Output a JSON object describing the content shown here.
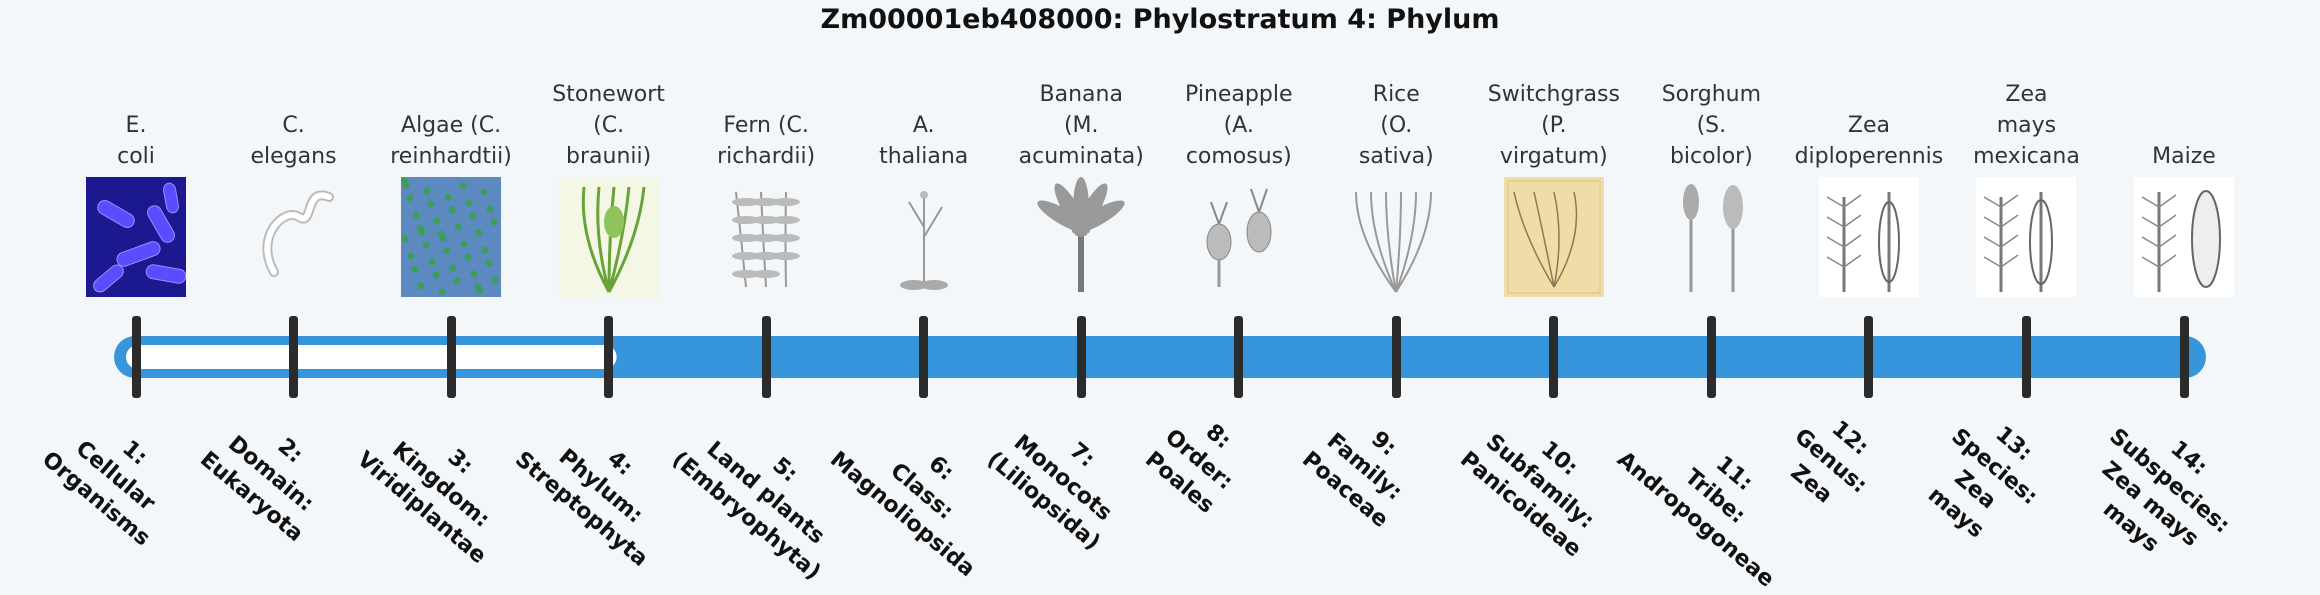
{
  "title": "Zm00001eb408000: Phylostratum 4: Phylum",
  "colors": {
    "track": "#3795dc",
    "track_unfilled": "#ffffff",
    "tick": "#2b2b2b"
  },
  "current_level_index": 3,
  "organisms": [
    {
      "lines": [
        "E.",
        "coli"
      ],
      "icon": "e-coli-image"
    },
    {
      "lines": [
        "C.",
        "elegans"
      ],
      "icon": "worm-image"
    },
    {
      "lines": [
        "Algae (C.",
        "reinhardtii)"
      ],
      "icon": "algae-image"
    },
    {
      "lines": [
        "Stonewort",
        "(C.",
        "braunii)"
      ],
      "icon": "stonewort-image"
    },
    {
      "lines": [
        "Fern (C.",
        "richardii)"
      ],
      "icon": "fern-image"
    },
    {
      "lines": [
        "A.",
        "thaliana"
      ],
      "icon": "arabidopsis-image"
    },
    {
      "lines": [
        "Banana",
        "(M.",
        "acuminata)"
      ],
      "icon": "banana-image"
    },
    {
      "lines": [
        "Pineapple",
        "(A.",
        "comosus)"
      ],
      "icon": "pineapple-image"
    },
    {
      "lines": [
        "Rice",
        "(O.",
        "sativa)"
      ],
      "icon": "rice-image"
    },
    {
      "lines": [
        "Switchgrass",
        "(P.",
        "virgatum)"
      ],
      "icon": "switchgrass-image"
    },
    {
      "lines": [
        "Sorghum",
        "(S.",
        "bicolor)"
      ],
      "icon": "sorghum-image"
    },
    {
      "lines": [
        "Zea",
        "diploperennis"
      ],
      "icon": "zea-diploperennis-image"
    },
    {
      "lines": [
        "Zea",
        "mays",
        "mexicana"
      ],
      "icon": "zea-mexicana-image"
    },
    {
      "lines": [
        "Maize"
      ],
      "icon": "maize-image"
    }
  ],
  "levels": [
    {
      "lines": [
        "1:",
        "Cellular",
        "Organisms"
      ]
    },
    {
      "lines": [
        "2:",
        "Domain:",
        "Eukaryota"
      ]
    },
    {
      "lines": [
        "3:",
        "Kingdom:",
        "Viridiplantae"
      ]
    },
    {
      "lines": [
        "4:",
        "Phylum:",
        "Streptophyta"
      ]
    },
    {
      "lines": [
        "5:",
        "Land plants",
        "(Embryophyta)"
      ]
    },
    {
      "lines": [
        "6:",
        "Class:",
        "Magnoliopsida"
      ]
    },
    {
      "lines": [
        "7:",
        "Monocots",
        "(Liliopsida)"
      ]
    },
    {
      "lines": [
        "8:",
        "Order:",
        "Poales"
      ]
    },
    {
      "lines": [
        "9:",
        "Family:",
        "Poaceae"
      ]
    },
    {
      "lines": [
        "10:",
        "Subfamily:",
        "Panicoideae"
      ]
    },
    {
      "lines": [
        "11:",
        "Tribe:",
        "Andropogoneae"
      ]
    },
    {
      "lines": [
        "12:",
        "Genus:",
        "Zea"
      ]
    },
    {
      "lines": [
        "13:",
        "Species:",
        "Zea",
        "mays"
      ]
    },
    {
      "lines": [
        "14:",
        "Subspecies:",
        "Zea mays",
        "mays"
      ]
    }
  ]
}
